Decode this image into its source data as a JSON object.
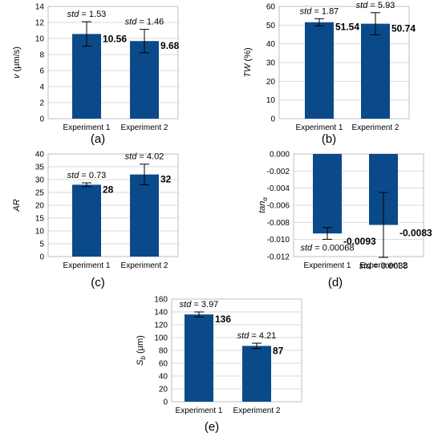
{
  "chart_data": [
    {
      "type": "bar",
      "panel_label": "(a)",
      "ylabel": "v (μm/s)",
      "ylabel_parts": {
        "sym": "v",
        "sub": "",
        "unit": " (μm/s)"
      },
      "categories": [
        "Experiment 1",
        "Experiment 2"
      ],
      "values": [
        10.56,
        9.68
      ],
      "value_labels": [
        "10.56",
        "9.68"
      ],
      "std": [
        1.53,
        1.46
      ],
      "std_labels": [
        "1.53",
        "1.46"
      ],
      "ylim": [
        0,
        14
      ],
      "yticks": [
        0,
        2,
        4,
        6,
        8,
        10,
        12,
        14
      ],
      "ytick_labels": [
        "0",
        "2",
        "4",
        "6",
        "8",
        "10",
        "12",
        "14"
      ],
      "grid": true,
      "bar_color": "#0b4a8a"
    },
    {
      "type": "bar",
      "panel_label": "(b)",
      "ylabel": "TW (%)",
      "ylabel_parts": {
        "sym": "TW",
        "sub": "",
        "unit": " (%)"
      },
      "categories": [
        "Experiment 1",
        "Experiment 2"
      ],
      "values": [
        51.54,
        50.74
      ],
      "value_labels": [
        "51.54",
        "50.74"
      ],
      "std": [
        1.87,
        5.93
      ],
      "std_labels": [
        "1.87",
        "5.93"
      ],
      "ylim": [
        0,
        60
      ],
      "yticks": [
        0,
        10,
        20,
        30,
        40,
        50,
        60
      ],
      "ytick_labels": [
        "0",
        "10",
        "20",
        "30",
        "40",
        "50",
        "60"
      ],
      "grid": true,
      "bar_color": "#0b4a8a"
    },
    {
      "type": "bar",
      "panel_label": "(c)",
      "ylabel": "AR",
      "ylabel_parts": {
        "sym": "AR",
        "sub": "",
        "unit": ""
      },
      "categories": [
        "Experiment 1",
        "Experiment 2"
      ],
      "values": [
        28,
        32
      ],
      "value_labels": [
        "28",
        "32"
      ],
      "std": [
        0.73,
        4.02
      ],
      "std_labels": [
        "0.73",
        "4.02"
      ],
      "ylim": [
        0,
        40
      ],
      "yticks": [
        0,
        5,
        10,
        15,
        20,
        25,
        30,
        35,
        40
      ],
      "ytick_labels": [
        "0",
        "5",
        "10",
        "15",
        "20",
        "25",
        "30",
        "35",
        "40"
      ],
      "grid": true,
      "bar_color": "#0b4a8a"
    },
    {
      "type": "bar",
      "panel_label": "(d)",
      "ylabel": "tanα",
      "ylabel_parts": {
        "sym": "tan",
        "sub": "α",
        "unit": ""
      },
      "categories": [
        "Experiment 1",
        "Experiment 2"
      ],
      "values": [
        -0.0093,
        -0.0083
      ],
      "value_labels": [
        "-0.0093",
        "-0.0083"
      ],
      "std": [
        0.00068,
        0.0038
      ],
      "std_labels": [
        "0.00068",
        "0.0038"
      ],
      "ylim": [
        -0.012,
        0
      ],
      "yticks": [
        0,
        -0.002,
        -0.004,
        -0.006,
        -0.008,
        -0.01,
        -0.012
      ],
      "ytick_labels": [
        "0.000",
        "-0.002",
        "-0.004",
        "-0.006",
        "-0.008",
        "-0.010",
        "-0.012"
      ],
      "grid": true,
      "bar_color": "#0b4a8a"
    },
    {
      "type": "bar",
      "panel_label": "(e)",
      "ylabel": "Sb (μm)",
      "ylabel_parts": {
        "sym": "S",
        "sub": "b",
        "unit": " (μm)"
      },
      "categories": [
        "Experiment 1",
        "Experiment 2"
      ],
      "values": [
        136,
        87
      ],
      "value_labels": [
        "136",
        "87"
      ],
      "std": [
        3.97,
        4.21
      ],
      "std_labels": [
        "3.97",
        "4.21"
      ],
      "ylim": [
        0,
        160
      ],
      "yticks": [
        0,
        20,
        40,
        60,
        80,
        100,
        120,
        140,
        160
      ],
      "ytick_labels": [
        "0",
        "20",
        "40",
        "60",
        "80",
        "100",
        "120",
        "140",
        "160"
      ],
      "grid": true,
      "bar_color": "#0b4a8a"
    }
  ],
  "std_prefix": "std",
  "std_equals": " = "
}
